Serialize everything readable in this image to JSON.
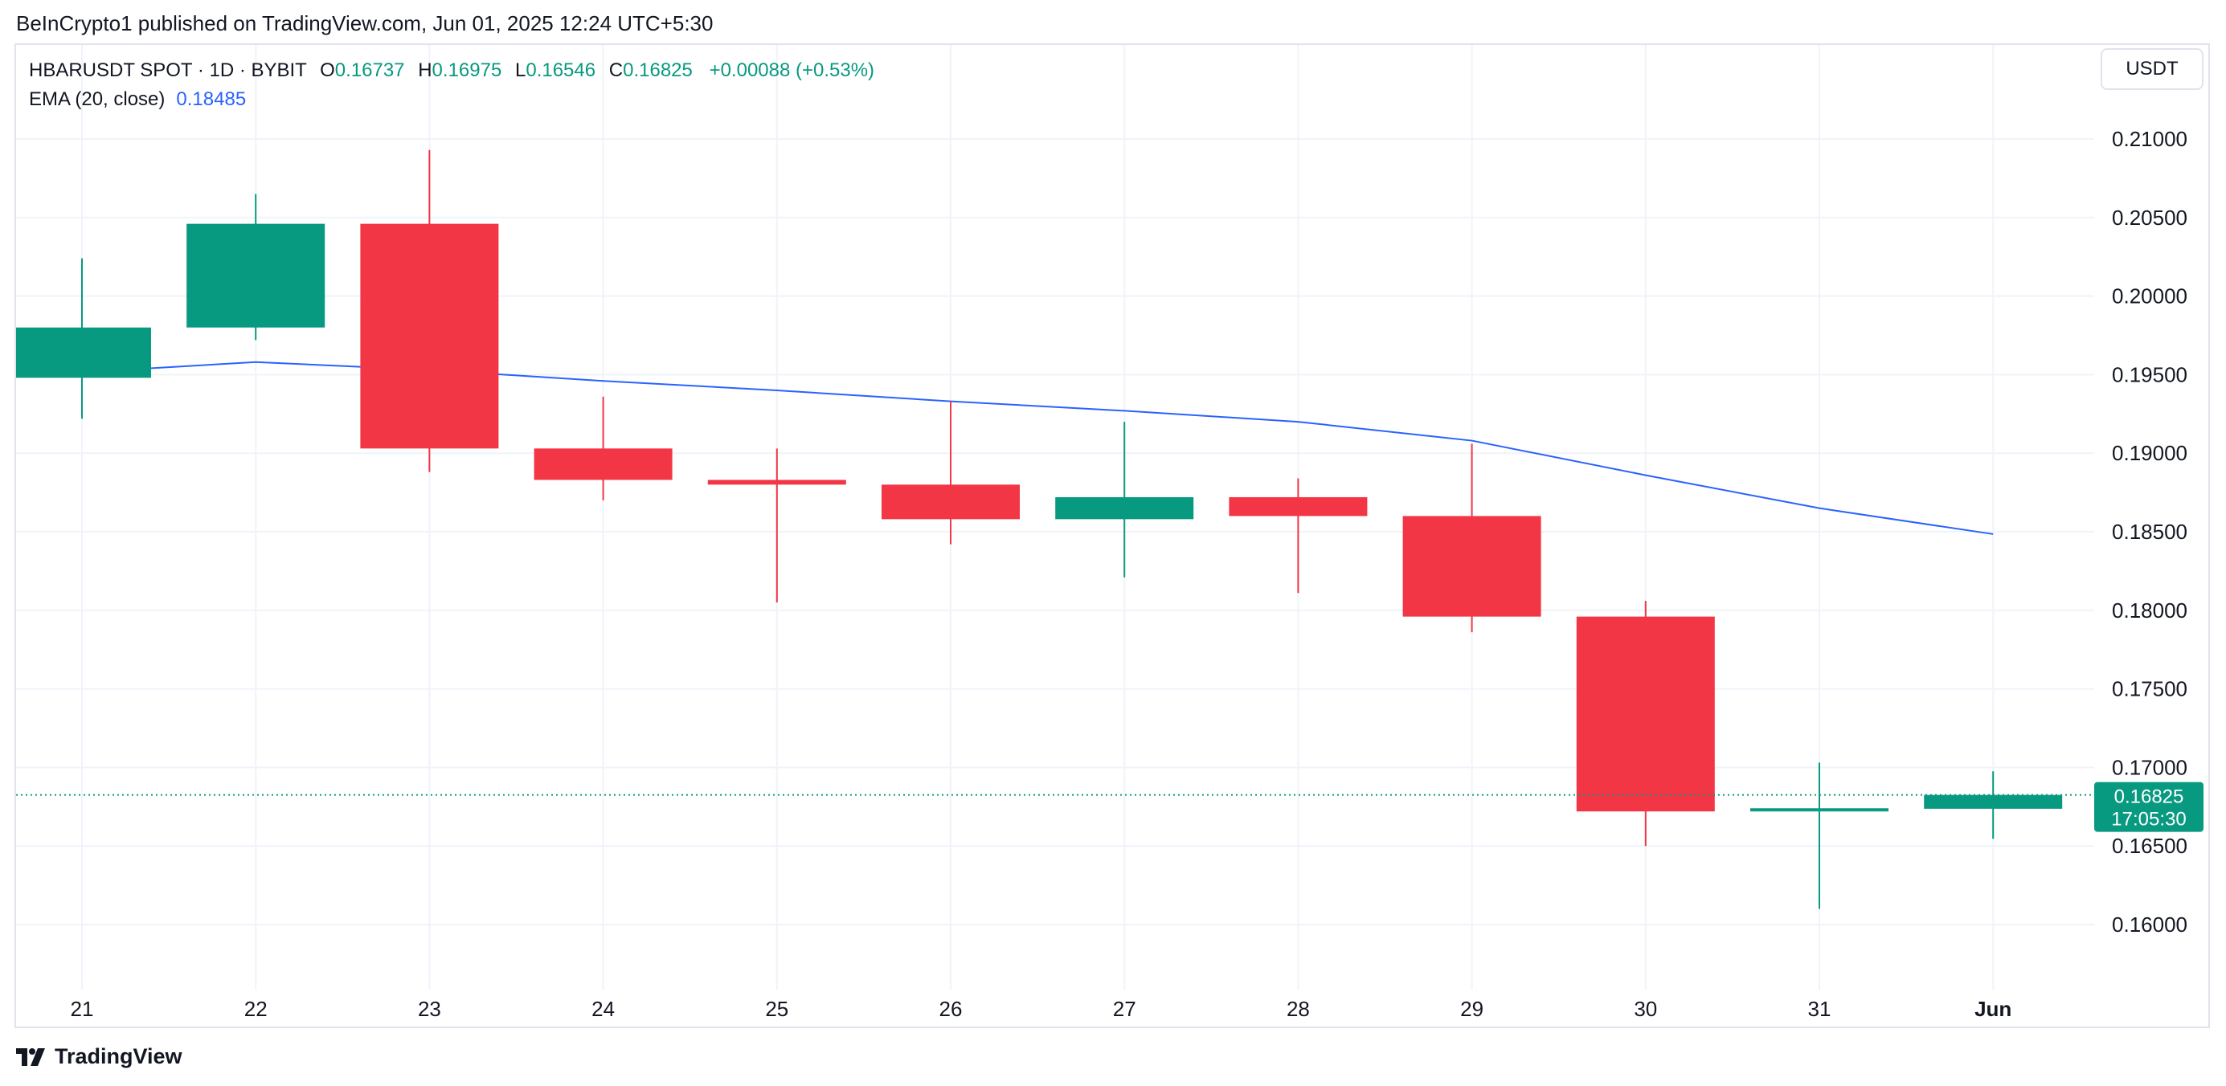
{
  "publisher_line": "BeInCrypto1 published on TradingView.com, Jun 01, 2025 12:24 UTC+5:30",
  "legend": {
    "symbol": "HBARUSDT SPOT · 1D · BYBIT",
    "o_label": "O",
    "o_value": "0.16737",
    "h_label": "H",
    "h_value": "0.16975",
    "l_label": "L",
    "l_value": "0.16546",
    "c_label": "C",
    "c_value": "0.16825",
    "change": "+0.00088 (+0.53%)",
    "ema_name": "EMA (20, close)",
    "ema_value": "0.18485"
  },
  "currency_button": "USDT",
  "price_tag": {
    "price": "0.16825",
    "countdown": "17:05:30"
  },
  "brand": "TradingView",
  "colors": {
    "up": "#089981",
    "down": "#f23645",
    "ema": "#2962ff",
    "grid": "#f0f3fa",
    "text": "#131722"
  },
  "chart_data": {
    "type": "candlestick",
    "symbol": "HBARUSDT",
    "ylim": [
      0.1555,
      0.2135
    ],
    "y_ticks": [
      "0.16000",
      "0.16500",
      "0.17000",
      "0.17500",
      "0.18000",
      "0.18500",
      "0.19000",
      "0.19500",
      "0.20000",
      "0.20500",
      "0.21000"
    ],
    "x_ticks": [
      "21",
      "22",
      "23",
      "24",
      "25",
      "26",
      "27",
      "28",
      "29",
      "30",
      "31",
      "Jun"
    ],
    "candles": [
      {
        "date": "21",
        "open": 0.1948,
        "high": 0.2024,
        "low": 0.1922,
        "close": 0.198
      },
      {
        "date": "22",
        "open": 0.198,
        "high": 0.2065,
        "low": 0.1972,
        "close": 0.2046
      },
      {
        "date": "23",
        "open": 0.2046,
        "high": 0.2093,
        "low": 0.1888,
        "close": 0.1903
      },
      {
        "date": "24",
        "open": 0.1903,
        "high": 0.1936,
        "low": 0.187,
        "close": 0.1883
      },
      {
        "date": "25",
        "open": 0.1883,
        "high": 0.1903,
        "low": 0.1805,
        "close": 0.188
      },
      {
        "date": "26",
        "open": 0.188,
        "high": 0.1933,
        "low": 0.1842,
        "close": 0.1858
      },
      {
        "date": "27",
        "open": 0.1858,
        "high": 0.192,
        "low": 0.1821,
        "close": 0.1872
      },
      {
        "date": "28",
        "open": 0.1872,
        "high": 0.1884,
        "low": 0.1811,
        "close": 0.186
      },
      {
        "date": "29",
        "open": 0.186,
        "high": 0.1906,
        "low": 0.1786,
        "close": 0.1796
      },
      {
        "date": "30",
        "open": 0.1796,
        "high": 0.1806,
        "low": 0.165,
        "close": 0.1672
      },
      {
        "date": "31",
        "open": 0.1672,
        "high": 0.1703,
        "low": 0.161,
        "close": 0.1674
      },
      {
        "date": "Jun",
        "open": 0.16737,
        "high": 0.16975,
        "low": 0.16546,
        "close": 0.16825
      }
    ],
    "ema": {
      "name": "EMA (20, close)",
      "values": [
        0.1949,
        0.1958,
        0.1953,
        0.1946,
        0.194,
        0.1933,
        0.1927,
        0.192,
        0.1908,
        0.1886,
        0.1865,
        0.18485
      ]
    },
    "last_price": 0.16825,
    "grid": true
  }
}
